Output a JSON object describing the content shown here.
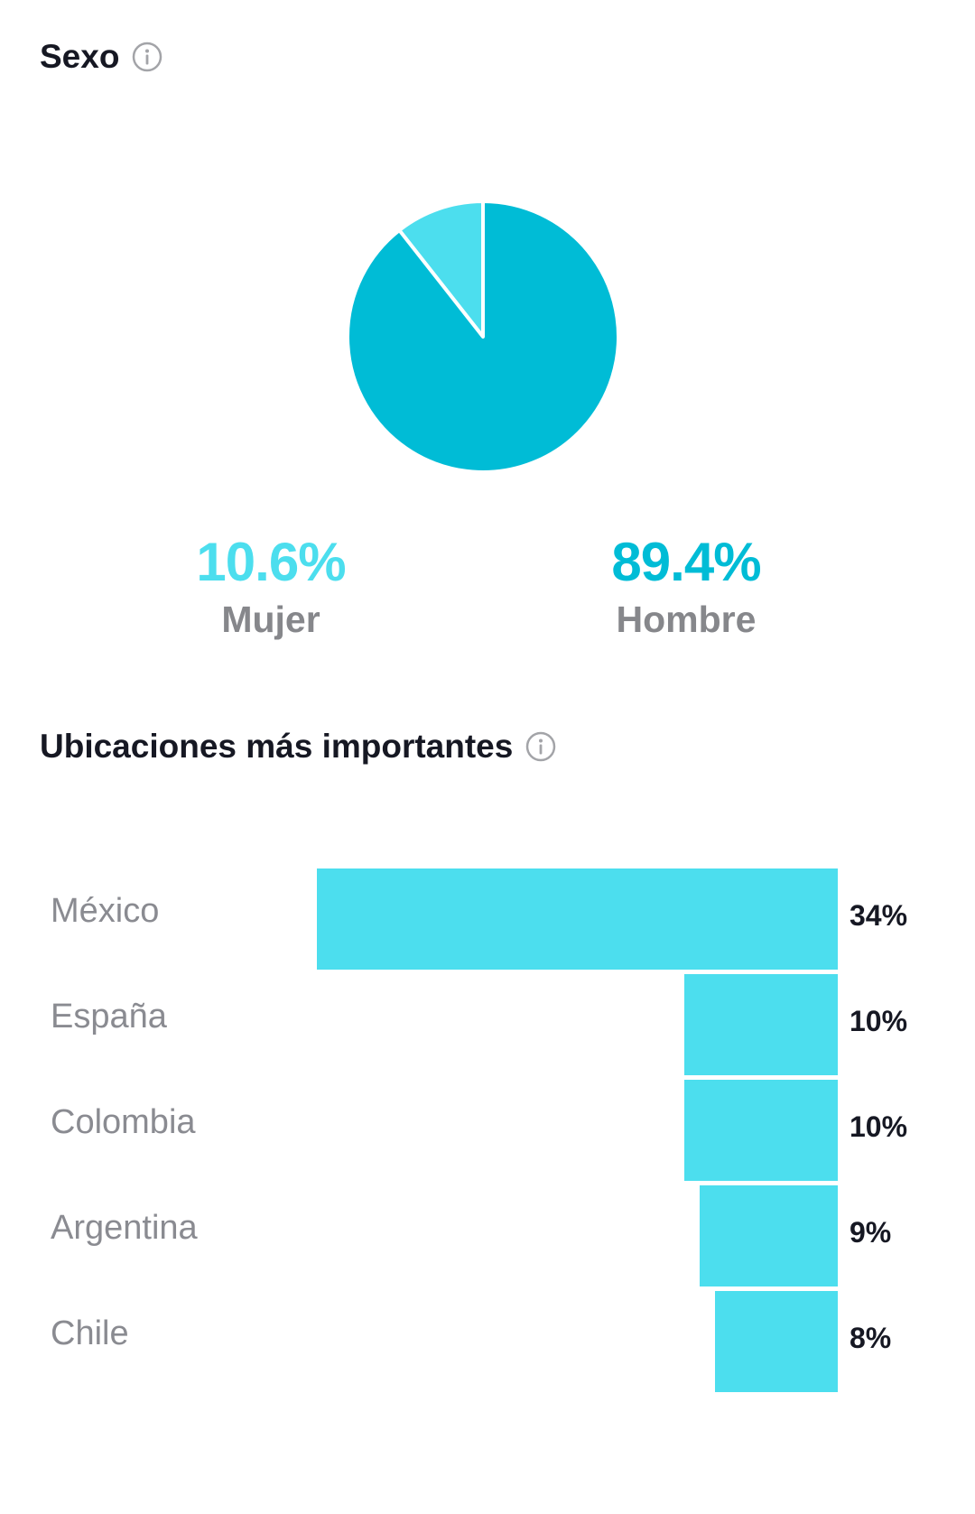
{
  "colors": {
    "accent_dark": "#00bcd6",
    "accent_light": "#4cdeee",
    "bar": "#4cdeee",
    "title": "#161823",
    "muted": "#86878b"
  },
  "sexo": {
    "title": "Sexo",
    "info_icon": "info-circle-icon",
    "items": [
      {
        "value": "10.6%",
        "label": "Mujer"
      },
      {
        "value": "89.4%",
        "label": "Hombre"
      }
    ]
  },
  "locations": {
    "title": "Ubicaciones más importantes",
    "info_icon": "info-circle-icon",
    "items": [
      {
        "label": "México",
        "value": "34%"
      },
      {
        "label": "España",
        "value": "10%"
      },
      {
        "label": "Colombia",
        "value": "10%"
      },
      {
        "label": "Argentina",
        "value": "9%"
      },
      {
        "label": "Chile",
        "value": "8%"
      }
    ]
  },
  "chart_data": [
    {
      "type": "pie",
      "title": "Sexo",
      "categories": [
        "Mujer",
        "Hombre"
      ],
      "values": [
        10.6,
        89.4
      ]
    },
    {
      "type": "bar",
      "orientation": "horizontal",
      "title": "Ubicaciones más importantes",
      "categories": [
        "México",
        "España",
        "Colombia",
        "Argentina",
        "Chile"
      ],
      "values": [
        34,
        10,
        10,
        9,
        8
      ]
    }
  ]
}
